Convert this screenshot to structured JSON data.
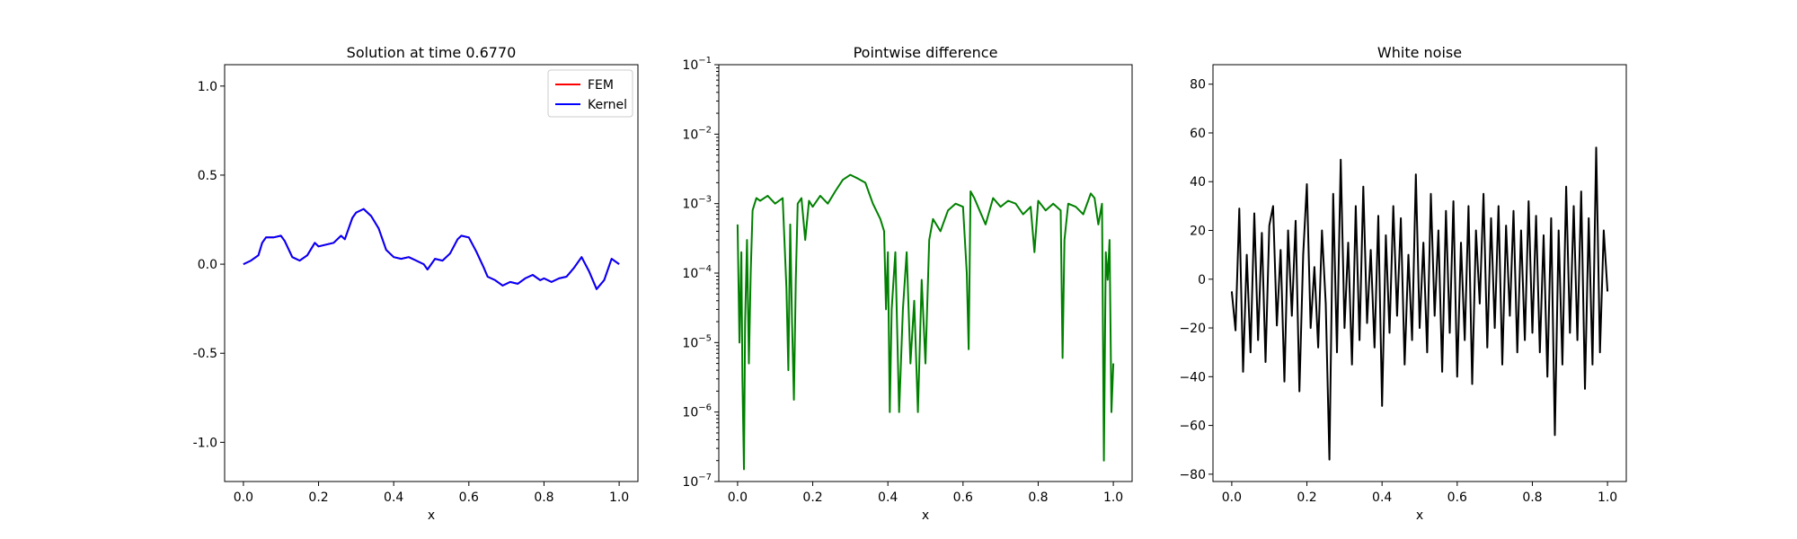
{
  "chart_data": [
    {
      "type": "line",
      "title": "Solution at time 0.6770",
      "xlabel": "x",
      "ylabel": "",
      "xlim": [
        -0.05,
        1.05
      ],
      "ylim": [
        -1.22,
        1.12
      ],
      "xticks": [
        "0.0",
        "0.2",
        "0.4",
        "0.6",
        "0.8",
        "1.0"
      ],
      "yticks": [
        "-1.0",
        "-0.5",
        "0.0",
        "0.5",
        "1.0"
      ],
      "legend": {
        "placement": "top-right",
        "entries": [
          "FEM",
          "Kernel"
        ]
      },
      "series": [
        {
          "name": "FEM",
          "color": "#ff0000",
          "x": [
            0.0,
            0.02,
            0.04,
            0.05,
            0.06,
            0.08,
            0.1,
            0.11,
            0.13,
            0.15,
            0.17,
            0.19,
            0.2,
            0.22,
            0.24,
            0.26,
            0.27,
            0.29,
            0.3,
            0.32,
            0.34,
            0.36,
            0.38,
            0.4,
            0.42,
            0.44,
            0.46,
            0.48,
            0.49,
            0.51,
            0.53,
            0.55,
            0.57,
            0.58,
            0.6,
            0.62,
            0.64,
            0.65,
            0.67,
            0.69,
            0.71,
            0.73,
            0.75,
            0.77,
            0.79,
            0.8,
            0.82,
            0.84,
            0.86,
            0.88,
            0.9,
            0.92,
            0.94,
            0.96,
            0.98,
            1.0
          ],
          "y": [
            0.0,
            0.02,
            0.05,
            0.12,
            0.15,
            0.15,
            0.16,
            0.13,
            0.04,
            0.02,
            0.05,
            0.12,
            0.1,
            0.11,
            0.12,
            0.16,
            0.14,
            0.26,
            0.29,
            0.31,
            0.27,
            0.2,
            0.08,
            0.04,
            0.03,
            0.04,
            0.02,
            0.0,
            -0.03,
            0.03,
            0.02,
            0.06,
            0.14,
            0.16,
            0.15,
            0.07,
            -0.02,
            -0.07,
            -0.09,
            -0.12,
            -0.1,
            -0.11,
            -0.08,
            -0.06,
            -0.09,
            -0.08,
            -0.1,
            -0.08,
            -0.07,
            -0.02,
            0.04,
            -0.04,
            -0.14,
            -0.09,
            0.03,
            0.0
          ]
        },
        {
          "name": "Kernel",
          "color": "#0000ff",
          "x": [
            0.0,
            0.02,
            0.04,
            0.05,
            0.06,
            0.08,
            0.1,
            0.11,
            0.13,
            0.15,
            0.17,
            0.19,
            0.2,
            0.22,
            0.24,
            0.26,
            0.27,
            0.29,
            0.3,
            0.32,
            0.34,
            0.36,
            0.38,
            0.4,
            0.42,
            0.44,
            0.46,
            0.48,
            0.49,
            0.51,
            0.53,
            0.55,
            0.57,
            0.58,
            0.6,
            0.62,
            0.64,
            0.65,
            0.67,
            0.69,
            0.71,
            0.73,
            0.75,
            0.77,
            0.79,
            0.8,
            0.82,
            0.84,
            0.86,
            0.88,
            0.9,
            0.92,
            0.94,
            0.96,
            0.98,
            1.0
          ],
          "y": [
            0.0,
            0.02,
            0.05,
            0.12,
            0.15,
            0.15,
            0.16,
            0.13,
            0.04,
            0.02,
            0.05,
            0.12,
            0.1,
            0.11,
            0.12,
            0.16,
            0.14,
            0.26,
            0.29,
            0.31,
            0.27,
            0.2,
            0.08,
            0.04,
            0.03,
            0.04,
            0.02,
            0.0,
            -0.03,
            0.03,
            0.02,
            0.06,
            0.14,
            0.16,
            0.15,
            0.07,
            -0.02,
            -0.07,
            -0.09,
            -0.12,
            -0.1,
            -0.11,
            -0.08,
            -0.06,
            -0.09,
            -0.08,
            -0.1,
            -0.08,
            -0.07,
            -0.02,
            0.04,
            -0.04,
            -0.14,
            -0.09,
            0.03,
            0.0
          ]
        }
      ]
    },
    {
      "type": "line",
      "title": "Pointwise difference",
      "xlabel": "x",
      "ylabel": "",
      "yscale": "log",
      "xlim": [
        -0.05,
        1.05
      ],
      "ylim": [
        1e-07,
        0.1
      ],
      "xticks": [
        "0.0",
        "0.2",
        "0.4",
        "0.6",
        "0.8",
        "1.0"
      ],
      "yticks": [
        {
          "base": "10",
          "exp": "−1",
          "value": 0.1
        },
        {
          "base": "10",
          "exp": "−2",
          "value": 0.01
        },
        {
          "base": "10",
          "exp": "−3",
          "value": 0.001
        },
        {
          "base": "10",
          "exp": "−4",
          "value": 0.0001
        },
        {
          "base": "10",
          "exp": "−5",
          "value": 1e-05
        },
        {
          "base": "10",
          "exp": "−6",
          "value": 1e-06
        },
        {
          "base": "10",
          "exp": "−7",
          "value": 1e-07
        }
      ],
      "series": [
        {
          "color": "#008000",
          "x": [
            0.0,
            0.005,
            0.01,
            0.013,
            0.017,
            0.02,
            0.025,
            0.03,
            0.035,
            0.04,
            0.05,
            0.06,
            0.08,
            0.1,
            0.12,
            0.13,
            0.135,
            0.14,
            0.145,
            0.15,
            0.155,
            0.16,
            0.17,
            0.18,
            0.19,
            0.2,
            0.22,
            0.24,
            0.26,
            0.28,
            0.3,
            0.32,
            0.34,
            0.36,
            0.38,
            0.39,
            0.395,
            0.4,
            0.405,
            0.41,
            0.415,
            0.42,
            0.43,
            0.44,
            0.45,
            0.46,
            0.47,
            0.48,
            0.49,
            0.5,
            0.51,
            0.52,
            0.54,
            0.56,
            0.58,
            0.6,
            0.61,
            0.615,
            0.62,
            0.63,
            0.64,
            0.66,
            0.68,
            0.7,
            0.72,
            0.74,
            0.76,
            0.78,
            0.79,
            0.8,
            0.82,
            0.84,
            0.86,
            0.865,
            0.87,
            0.88,
            0.9,
            0.92,
            0.94,
            0.95,
            0.96,
            0.97,
            0.975,
            0.98,
            0.985,
            0.99,
            0.995,
            1.0
          ],
          "y": [
            0.0005,
            1e-05,
            0.0002,
            3e-06,
            1.5e-07,
            2e-05,
            0.0003,
            5e-06,
            0.0001,
            0.0008,
            0.0012,
            0.0011,
            0.0013,
            0.001,
            0.0012,
            6e-05,
            4e-06,
            0.0005,
            2e-05,
            1.5e-06,
            8e-05,
            0.001,
            0.0012,
            0.0003,
            0.0011,
            0.0009,
            0.0013,
            0.001,
            0.0015,
            0.0022,
            0.0026,
            0.0023,
            0.002,
            0.001,
            0.0006,
            0.0004,
            3e-05,
            0.0002,
            1e-06,
            3e-05,
            8e-05,
            0.0002,
            1e-06,
            3e-05,
            0.0002,
            5e-06,
            4e-05,
            1e-06,
            8e-05,
            5e-06,
            0.0003,
            0.0006,
            0.0004,
            0.0008,
            0.001,
            0.0009,
            0.0001,
            8e-06,
            0.0015,
            0.0012,
            0.0009,
            0.0005,
            0.0012,
            0.0009,
            0.0011,
            0.001,
            0.0007,
            0.0009,
            0.0002,
            0.0011,
            0.0008,
            0.001,
            0.0008,
            6e-06,
            0.0003,
            0.001,
            0.0009,
            0.0007,
            0.0014,
            0.0012,
            0.0005,
            0.001,
            2e-07,
            0.0002,
            8e-05,
            0.0003,
            1e-06,
            5e-06
          ]
        }
      ]
    },
    {
      "type": "line",
      "title": "White noise",
      "xlabel": "x",
      "ylabel": "",
      "xlim": [
        -0.05,
        1.05
      ],
      "ylim": [
        -83,
        88
      ],
      "xticks": [
        "0.0",
        "0.2",
        "0.4",
        "0.6",
        "0.8",
        "1.0"
      ],
      "yticks": [
        "−80",
        "−60",
        "−40",
        "−20",
        "0",
        "20",
        "40",
        "60",
        "80"
      ],
      "series": [
        {
          "color": "#000000",
          "x": [
            0.0,
            0.01,
            0.02,
            0.03,
            0.04,
            0.05,
            0.06,
            0.07,
            0.08,
            0.09,
            0.1,
            0.11,
            0.12,
            0.13,
            0.14,
            0.15,
            0.16,
            0.17,
            0.18,
            0.19,
            0.2,
            0.21,
            0.22,
            0.23,
            0.24,
            0.25,
            0.26,
            0.27,
            0.28,
            0.29,
            0.3,
            0.31,
            0.32,
            0.33,
            0.34,
            0.35,
            0.36,
            0.37,
            0.38,
            0.39,
            0.4,
            0.41,
            0.42,
            0.43,
            0.44,
            0.45,
            0.46,
            0.47,
            0.48,
            0.49,
            0.5,
            0.51,
            0.52,
            0.53,
            0.54,
            0.55,
            0.56,
            0.57,
            0.58,
            0.59,
            0.6,
            0.61,
            0.62,
            0.63,
            0.64,
            0.65,
            0.66,
            0.67,
            0.68,
            0.69,
            0.7,
            0.71,
            0.72,
            0.73,
            0.74,
            0.75,
            0.76,
            0.77,
            0.78,
            0.79,
            0.8,
            0.81,
            0.82,
            0.83,
            0.84,
            0.85,
            0.86,
            0.87,
            0.88,
            0.89,
            0.9,
            0.91,
            0.92,
            0.93,
            0.94,
            0.95,
            0.96,
            0.97,
            0.98,
            0.99,
            1.0
          ],
          "y": [
            -5,
            -21,
            29,
            -38,
            10,
            -30,
            27,
            -25,
            19,
            -34,
            22,
            30,
            -19,
            12,
            -42,
            20,
            -15,
            24,
            -46,
            10,
            39,
            -20,
            5,
            -28,
            20,
            -10,
            -74,
            35,
            -30,
            49,
            -20,
            15,
            -35,
            30,
            -25,
            38,
            -18,
            12,
            -28,
            26,
            -52,
            18,
            -22,
            30,
            -15,
            25,
            -35,
            10,
            -25,
            43,
            -20,
            15,
            -30,
            35,
            -15,
            20,
            -38,
            28,
            -22,
            32,
            -40,
            15,
            -25,
            30,
            -43,
            20,
            -10,
            35,
            -28,
            25,
            -20,
            30,
            -35,
            22,
            -15,
            28,
            -30,
            20,
            -25,
            32,
            -22,
            26,
            -30,
            18,
            -40,
            25,
            -64,
            20,
            -35,
            38,
            -22,
            30,
            -25,
            36,
            -45,
            25,
            -35,
            54,
            -30,
            20,
            -5
          ]
        }
      ]
    }
  ]
}
